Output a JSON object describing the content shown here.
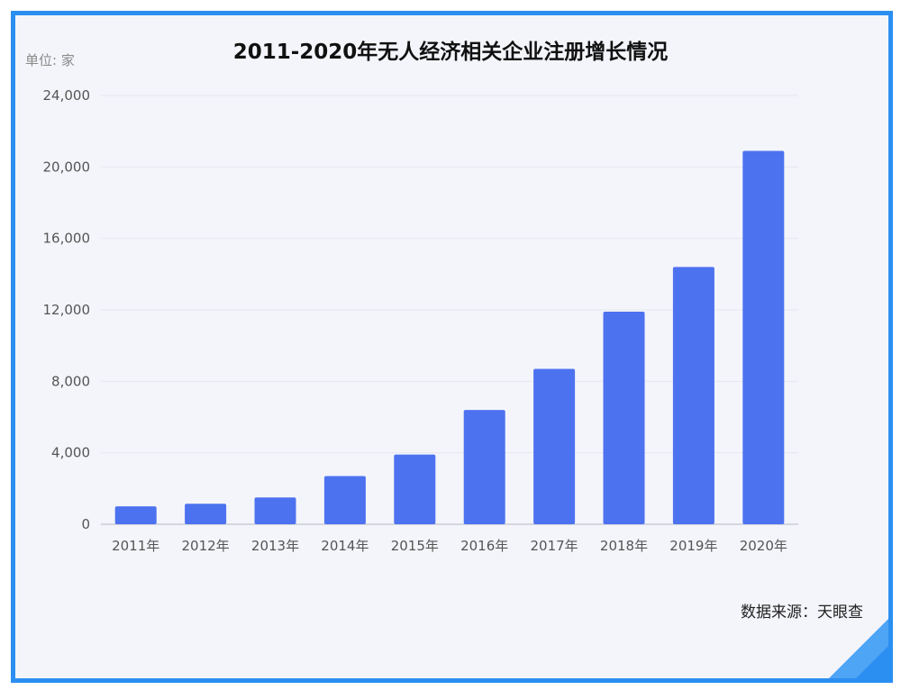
{
  "chart_data": {
    "type": "bar",
    "title": "2011-2020年无人经济相关企业注册增长情况",
    "unit_label": "单位: 家",
    "source": "数据来源：天眼查",
    "categories": [
      "2011年",
      "2012年",
      "2013年",
      "2014年",
      "2015年",
      "2016年",
      "2017年",
      "2018年",
      "2019年",
      "2020年"
    ],
    "values": [
      1000,
      1150,
      1500,
      2700,
      3900,
      6400,
      8700,
      11900,
      14400,
      20900
    ],
    "ylim": [
      0,
      24000
    ],
    "yticks": [
      0,
      4000,
      8000,
      12000,
      16000,
      20000,
      24000
    ],
    "ytick_labels": [
      "0",
      "4,000",
      "8,000",
      "12,000",
      "16,000",
      "20,000",
      "24,000"
    ],
    "grid": true,
    "bar_color": "#4d72f0"
  }
}
